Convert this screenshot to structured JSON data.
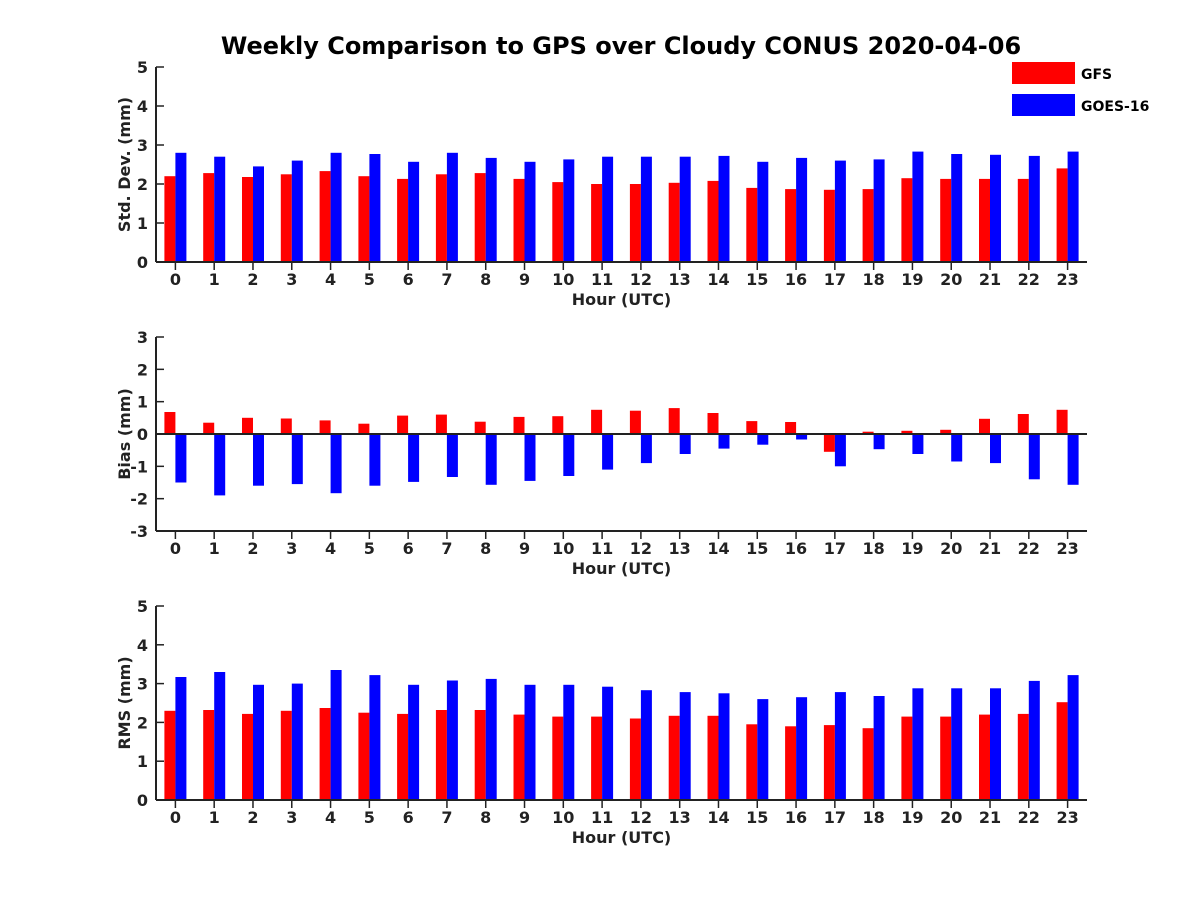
{
  "figure": {
    "title": "Weekly Comparison to GPS over Cloudy CONUS 2020-04-06"
  },
  "legend": {
    "placement": "top-right",
    "items": [
      {
        "label": "GFS",
        "color": "#ff0000"
      },
      {
        "label": "GOES-16",
        "color": "#0000ff"
      }
    ]
  },
  "chart_data": [
    {
      "type": "bar",
      "categories": [
        "0",
        "1",
        "2",
        "3",
        "4",
        "5",
        "6",
        "7",
        "8",
        "9",
        "10",
        "11",
        "12",
        "13",
        "14",
        "15",
        "16",
        "17",
        "18",
        "19",
        "20",
        "21",
        "22",
        "23"
      ],
      "xlabel": "Hour (UTC)",
      "ylabel": "Std. Dev. (mm)",
      "ylim": [
        0,
        5
      ],
      "yticks": [
        0,
        1,
        2,
        3,
        4,
        5
      ],
      "series": [
        {
          "name": "GFS",
          "color": "#ff0000",
          "values": [
            2.2,
            2.28,
            2.18,
            2.25,
            2.33,
            2.2,
            2.13,
            2.25,
            2.28,
            2.13,
            2.05,
            2.0,
            2.0,
            2.03,
            2.08,
            1.9,
            1.87,
            1.85,
            1.87,
            2.15,
            2.13,
            2.13,
            2.13,
            2.4
          ]
        },
        {
          "name": "GOES-16",
          "color": "#0000ff",
          "values": [
            2.8,
            2.7,
            2.45,
            2.6,
            2.8,
            2.77,
            2.57,
            2.8,
            2.67,
            2.57,
            2.63,
            2.7,
            2.7,
            2.7,
            2.72,
            2.57,
            2.67,
            2.6,
            2.63,
            2.83,
            2.77,
            2.75,
            2.72,
            2.83
          ]
        }
      ]
    },
    {
      "type": "bar",
      "categories": [
        "0",
        "1",
        "2",
        "3",
        "4",
        "5",
        "6",
        "7",
        "8",
        "9",
        "10",
        "11",
        "12",
        "13",
        "14",
        "15",
        "16",
        "17",
        "18",
        "19",
        "20",
        "21",
        "22",
        "23"
      ],
      "xlabel": "Hour (UTC)",
      "ylabel": "Bias (mm)",
      "ylim": [
        -3,
        3
      ],
      "yticks": [
        -3,
        -2,
        -1,
        0,
        1,
        2,
        3
      ],
      "series": [
        {
          "name": "GFS",
          "color": "#ff0000",
          "values": [
            0.68,
            0.35,
            0.5,
            0.48,
            0.42,
            0.32,
            0.57,
            0.6,
            0.38,
            0.53,
            0.55,
            0.75,
            0.72,
            0.8,
            0.65,
            0.4,
            0.37,
            -0.55,
            0.07,
            0.1,
            0.13,
            0.47,
            0.62,
            0.75
          ]
        },
        {
          "name": "GOES-16",
          "color": "#0000ff",
          "values": [
            -1.5,
            -1.9,
            -1.6,
            -1.55,
            -1.83,
            -1.6,
            -1.48,
            -1.33,
            -1.57,
            -1.45,
            -1.3,
            -1.1,
            -0.9,
            -0.62,
            -0.45,
            -0.33,
            -0.17,
            -1.0,
            -0.47,
            -0.62,
            -0.85,
            -0.9,
            -1.4,
            -1.57
          ]
        }
      ]
    },
    {
      "type": "bar",
      "categories": [
        "0",
        "1",
        "2",
        "3",
        "4",
        "5",
        "6",
        "7",
        "8",
        "9",
        "10",
        "11",
        "12",
        "13",
        "14",
        "15",
        "16",
        "17",
        "18",
        "19",
        "20",
        "21",
        "22",
        "23"
      ],
      "xlabel": "Hour (UTC)",
      "ylabel": "RMS (mm)",
      "ylim": [
        0,
        5
      ],
      "yticks": [
        0,
        1,
        2,
        3,
        4,
        5
      ],
      "series": [
        {
          "name": "GFS",
          "color": "#ff0000",
          "values": [
            2.3,
            2.32,
            2.22,
            2.3,
            2.37,
            2.25,
            2.22,
            2.32,
            2.32,
            2.2,
            2.15,
            2.15,
            2.1,
            2.17,
            2.17,
            1.95,
            1.9,
            1.93,
            1.85,
            2.15,
            2.15,
            2.2,
            2.22,
            2.52
          ]
        },
        {
          "name": "GOES-16",
          "color": "#0000ff",
          "values": [
            3.17,
            3.3,
            2.97,
            3.0,
            3.35,
            3.22,
            2.97,
            3.08,
            3.12,
            2.97,
            2.97,
            2.92,
            2.83,
            2.78,
            2.75,
            2.6,
            2.65,
            2.78,
            2.68,
            2.88,
            2.88,
            2.88,
            3.07,
            3.22
          ]
        }
      ]
    }
  ]
}
